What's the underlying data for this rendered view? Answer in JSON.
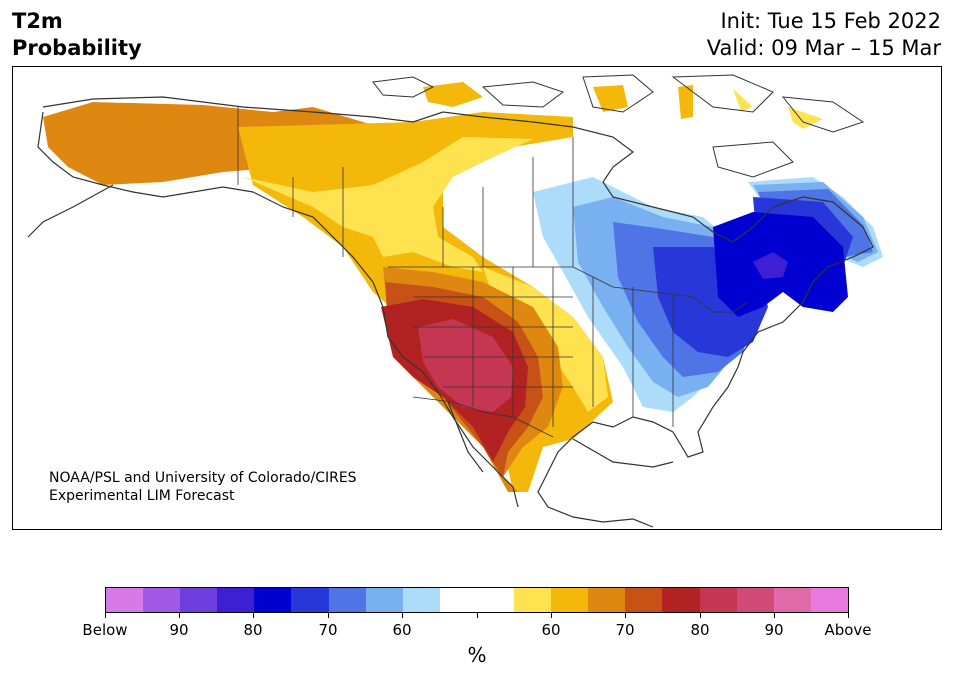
{
  "title": {
    "line1": "T2m",
    "line2": "Probability"
  },
  "subtitle": {
    "init": "Init: Tue 15 Feb 2022",
    "valid": "Valid: 09 Mar – 15 Mar"
  },
  "credit": {
    "line1": "NOAA/PSL and University of Colorado/CIRES",
    "line2": "Experimental LIM Forecast"
  },
  "colorbar": {
    "unit": "%",
    "colors": [
      "#d67ae8",
      "#a25ae6",
      "#6e3edf",
      "#3d1fd4",
      "#0000d0",
      "#2838d8",
      "#4f74e6",
      "#78b0f2",
      "#addcfa",
      "#ffffff",
      "#ffffff",
      "#ffe24f",
      "#f3b80a",
      "#df8811",
      "#c65215",
      "#b32222",
      "#c43651",
      "#d24a78",
      "#e06aaa",
      "#e87ae0"
    ],
    "labels": [
      "Below",
      "90",
      "80",
      "70",
      "60",
      "",
      "60",
      "70",
      "80",
      "90",
      "Above"
    ]
  }
}
